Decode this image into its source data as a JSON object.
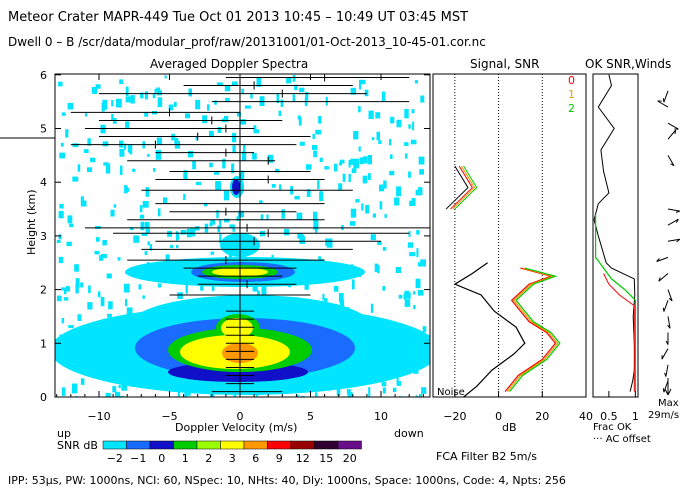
{
  "header": {
    "line1": "Meteor Crater   MAPR-449   Tue Oct 01 2013 10:45 – 10:49 UT 03:45 MST",
    "line2": "Dwell  0 –  B    /scr/data/modular_prof/raw/20131001/01-Oct-2013_10-45-01.cor.nc"
  },
  "footer": {
    "params": "IPP: 53µs,  PW: 1000ns,  NCI: 60,  NSpec: 10, NHts: 40,  Dly: 1000ns,  Space: 1000ns,  Code: 4,  Npts: 256"
  },
  "colors": {
    "cyan": "#00e5ff",
    "blue1": "#1a6bff",
    "blue2": "#1010c8",
    "green": "#00cc00",
    "yellow": "#ffff00",
    "orange": "#ff9900",
    "red": "#ff0000",
    "maroon": "#990000",
    "purple": "#6a0d8a"
  },
  "chart_data": [
    {
      "type": "heatmap",
      "title": "Averaged Doppler Spectra",
      "xlabel": "Doppler Velocity (m/s)",
      "ylabel": "Height (km)",
      "xlim": [
        -13,
        13
      ],
      "ylim": [
        0,
        6
      ],
      "x_ticks": [
        -10,
        -5,
        0,
        5,
        10
      ],
      "y_ticks": [
        0,
        1,
        2,
        3,
        4,
        5,
        6
      ],
      "left_label": "up",
      "right_label": "down",
      "colorbar": {
        "label": "SNR dB",
        "levels": [
          "−2",
          "−1",
          "0",
          "1",
          "2",
          "3",
          "6",
          "9",
          "12",
          "15",
          "20"
        ],
        "colors": [
          "#00e5ff",
          "#1a6bff",
          "#1010c8",
          "#00cc00",
          "#9aff00",
          "#ffff00",
          "#ff9900",
          "#ff0000",
          "#990000",
          "#300030",
          "#6a0d8a"
        ]
      },
      "error_bars": [
        {
          "h": 0.1,
          "center": 0.0,
          "lo": -2.0,
          "hi": 3.0
        },
        {
          "h": 0.25,
          "center": 0.0,
          "lo": -1.0,
          "hi": 1.0
        },
        {
          "h": 0.4,
          "center": 0.0,
          "lo": -1.0,
          "hi": 1.0
        },
        {
          "h": 0.55,
          "center": 0.0,
          "lo": -1.0,
          "hi": 1.0
        },
        {
          "h": 0.7,
          "center": 0.0,
          "lo": -1.0,
          "hi": 1.0
        },
        {
          "h": 0.85,
          "center": 0.0,
          "lo": -1.0,
          "hi": 1.0
        },
        {
          "h": 1.0,
          "center": 0.0,
          "lo": -1.0,
          "hi": 1.0
        },
        {
          "h": 1.15,
          "center": 0.0,
          "lo": -1.0,
          "hi": 1.0
        },
        {
          "h": 1.3,
          "center": 0.0,
          "lo": -1.0,
          "hi": 1.0
        },
        {
          "h": 1.45,
          "center": 0.0,
          "lo": -1.0,
          "hi": 1.0
        },
        {
          "h": 1.6,
          "center": 0.0,
          "lo": -1.0,
          "hi": 1.0
        },
        {
          "h": 1.9,
          "center": 0.0,
          "lo": -5.0,
          "hi": 5.0
        },
        {
          "h": 2.1,
          "center": 0.5,
          "lo": -3.0,
          "hi": 4.0
        },
        {
          "h": 2.25,
          "center": 0.0,
          "lo": -3.0,
          "hi": 3.0
        },
        {
          "h": 2.4,
          "center": 0.0,
          "lo": -4.0,
          "hi": 4.0
        },
        {
          "h": 2.55,
          "center": -1.0,
          "lo": -8.0,
          "hi": 6.0
        },
        {
          "h": 2.75,
          "center": 0.0,
          "lo": -7.0,
          "hi": 8.0
        },
        {
          "h": 2.9,
          "center": 1.0,
          "lo": -6.0,
          "hi": 10.0
        },
        {
          "h": 3.05,
          "center": 2.0,
          "lo": -9.0,
          "hi": 12.0
        },
        {
          "h": 3.15,
          "center": 0.5,
          "lo": -11.0,
          "hi": 14.0
        },
        {
          "h": 3.3,
          "center": 0.0,
          "lo": -8.0,
          "hi": 6.0
        },
        {
          "h": 3.45,
          "center": -1.0,
          "lo": -5.0,
          "hi": 4.0
        },
        {
          "h": 3.6,
          "center": 0.0,
          "lo": -6.0,
          "hi": 6.0
        },
        {
          "h": 3.85,
          "center": 0.0,
          "lo": -7.0,
          "hi": 8.0
        },
        {
          "h": 4.05,
          "center": 2.0,
          "lo": -6.0,
          "hi": 6.0
        },
        {
          "h": 4.2,
          "center": 0.0,
          "lo": -5.0,
          "hi": 5.0
        },
        {
          "h": 4.4,
          "center": 2.0,
          "lo": -8.0,
          "hi": 2.5
        },
        {
          "h": 4.55,
          "center": -1.0,
          "lo": -6.0,
          "hi": 1.0
        },
        {
          "h": 4.7,
          "center": -6.0,
          "lo": -12.0,
          "hi": 4.0
        },
        {
          "h": 4.85,
          "center": -3.0,
          "lo": -10.0,
          "hi": 5.0
        },
        {
          "h": 5.0,
          "center": -1.0,
          "lo": -11.0,
          "hi": 1.0
        },
        {
          "h": 5.15,
          "center": -2.0,
          "lo": -10.0,
          "hi": 3.0
        },
        {
          "h": 5.3,
          "center": -5.0,
          "lo": -12.0,
          "hi": 0.0
        },
        {
          "h": 5.5,
          "center": 0.0,
          "lo": -2.0,
          "hi": 12.0
        },
        {
          "h": 5.65,
          "center": 3.0,
          "lo": -10.0,
          "hi": 9.0
        },
        {
          "h": 5.8,
          "center": 1.0,
          "lo": -4.0,
          "hi": 8.0
        },
        {
          "h": 5.95,
          "center": 6.0,
          "lo": -1.0,
          "hi": 12.0
        }
      ]
    },
    {
      "type": "line",
      "title": "Signal, SNR",
      "xlabel": "dB",
      "xlim": [
        -30,
        40
      ],
      "x_ticks": [
        -20,
        0,
        20,
        40
      ],
      "ylim": [
        0,
        6
      ],
      "noise_label": "Noise",
      "legend": [
        "0",
        "1",
        "2"
      ],
      "series": [
        {
          "name": "0",
          "color": "#ff0000",
          "points": [
            [
              3,
              0.1
            ],
            [
              9,
              0.4
            ],
            [
              20,
              0.7
            ],
            [
              26,
              1.0
            ],
            [
              22,
              1.2
            ],
            [
              14,
              1.4
            ],
            [
              10,
              1.6
            ],
            [
              6,
              1.8
            ],
            [
              14,
              2.1
            ],
            [
              24,
              2.25
            ],
            [
              10,
              2.4
            ]
          ]
        },
        {
          "name": "1",
          "color": "#e8a000",
          "points": [
            [
              4,
              0.1
            ],
            [
              10,
              0.4
            ],
            [
              21,
              0.7
            ],
            [
              27,
              1.0
            ],
            [
              23,
              1.2
            ],
            [
              15,
              1.4
            ],
            [
              11,
              1.6
            ],
            [
              7,
              1.8
            ],
            [
              15,
              2.1
            ],
            [
              25,
              2.25
            ],
            [
              11,
              2.4
            ]
          ]
        },
        {
          "name": "2",
          "color": "#00cc00",
          "points": [
            [
              5,
              0.1
            ],
            [
              11,
              0.4
            ],
            [
              22,
              0.7
            ],
            [
              28,
              1.0
            ],
            [
              24,
              1.2
            ],
            [
              16,
              1.4
            ],
            [
              12,
              1.6
            ],
            [
              8,
              1.8
            ],
            [
              16,
              2.1
            ],
            [
              26,
              2.25
            ],
            [
              12,
              2.4
            ]
          ]
        },
        {
          "name": "noise",
          "color": "#000000",
          "points": [
            [
              -16,
              0.0
            ],
            [
              -10,
              0.2
            ],
            [
              -3,
              0.5
            ],
            [
              7,
              0.8
            ],
            [
              12,
              1.0
            ],
            [
              8,
              1.3
            ],
            [
              -2,
              1.6
            ],
            [
              -8,
              1.9
            ],
            [
              -20,
              2.1
            ],
            [
              -12,
              2.3
            ],
            [
              -5,
              2.5
            ]
          ]
        }
      ]
    },
    {
      "type": "line",
      "title": "OK SNR,Winds",
      "xlabel": "Frac OK",
      "subxlabel": "··· AC offset",
      "xlim": [
        0.2,
        1.05
      ],
      "x_ticks": [
        0.5,
        1
      ],
      "tick_labels": [
        "0.5",
        "1"
      ],
      "ylim": [
        0,
        6
      ],
      "max_label": "Max",
      "max_value": "29m/s"
    }
  ]
}
